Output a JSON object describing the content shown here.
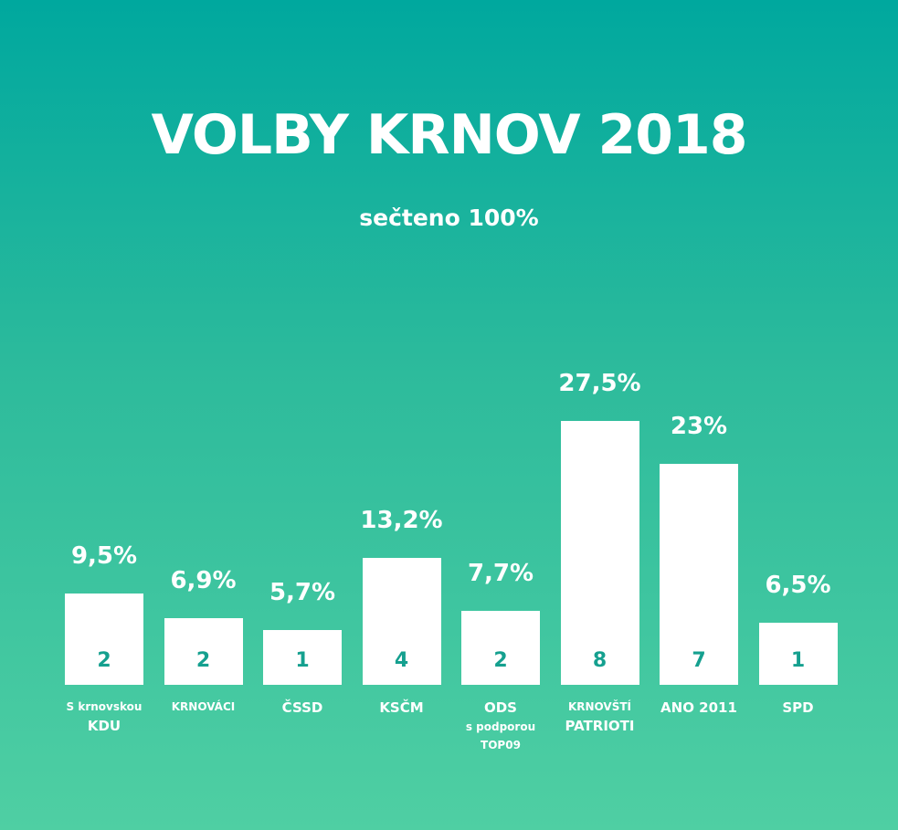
{
  "title": "VOLBY KRNOV 2018",
  "subtitle": "sečteno 100%",
  "chart_data": {
    "type": "bar",
    "ylabel": "",
    "xlabel": "",
    "ylim": [
      0,
      30
    ],
    "categories": [
      {
        "lines": [
          {
            "text": "S krnovskou",
            "size": "small"
          },
          {
            "text": "KDU",
            "size": "big"
          }
        ]
      },
      {
        "lines": [
          {
            "text": "KRNOVÁCI",
            "size": "small"
          }
        ]
      },
      {
        "lines": [
          {
            "text": "ČSSD",
            "size": "big"
          }
        ]
      },
      {
        "lines": [
          {
            "text": "KSČM",
            "size": "big"
          }
        ]
      },
      {
        "lines": [
          {
            "text": "ODS",
            "size": "big"
          },
          {
            "text": "s podporou",
            "size": "small"
          },
          {
            "text": "TOP09",
            "size": "small"
          }
        ]
      },
      {
        "lines": [
          {
            "text": "KRNOVŠTÍ",
            "size": "small"
          },
          {
            "text": "PATRIOTI",
            "size": "big"
          }
        ]
      },
      {
        "lines": [
          {
            "text": "ANO 2011",
            "size": "big"
          }
        ]
      },
      {
        "lines": [
          {
            "text": "SPD",
            "size": "big"
          }
        ]
      }
    ],
    "values": [
      9.5,
      6.9,
      5.7,
      13.2,
      7.7,
      27.5,
      23,
      6.5
    ],
    "value_labels": [
      "9,5%",
      "6,9%",
      "5,7%",
      "13,2%",
      "7,7%",
      "27,5%",
      "23%",
      "6,5%"
    ],
    "seats": [
      "2",
      "2",
      "1",
      "4",
      "2",
      "8",
      "7",
      "1"
    ],
    "colors": {
      "bar": "#ffffff",
      "seat_text": "#15a08f"
    }
  }
}
